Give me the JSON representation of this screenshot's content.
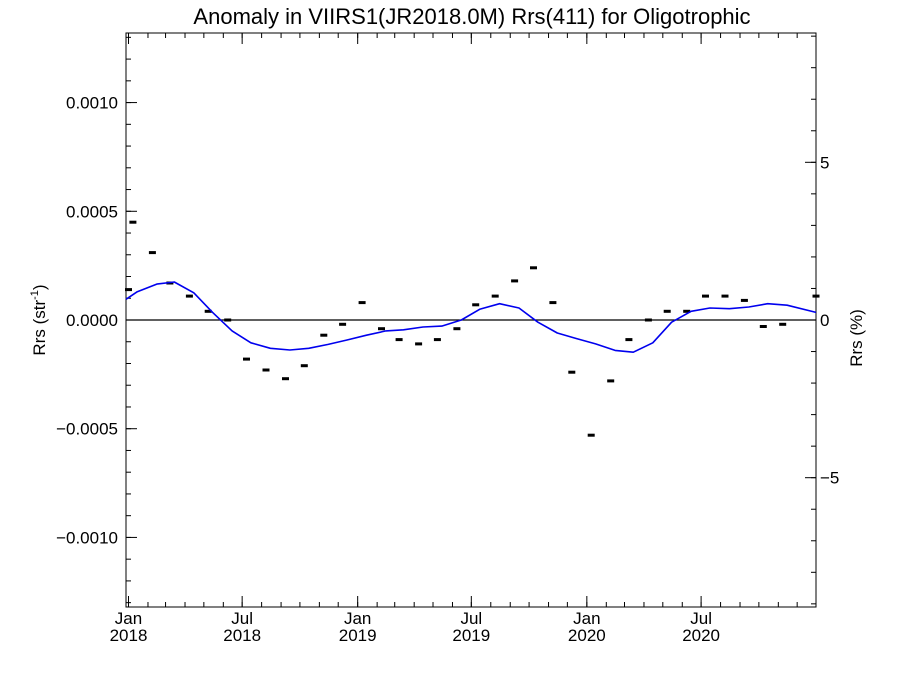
{
  "chart_data": {
    "type": "line",
    "title": "Anomaly in VIIRS1(JR2018.0M) Rrs(411) for Oligotrophic",
    "ylabel": "Rrs (str",
    "ylabel_sup": "-1",
    "ylabel_close": ")",
    "y2label": "Rrs (%)",
    "ylim": [
      -0.00132,
      0.00132
    ],
    "y2lim": [
      -9.1,
      9.1
    ],
    "xlim": [
      "2017-12-28",
      "2020-12-31"
    ],
    "y_ticks": [
      {
        "value": 0.001,
        "label": "0.0010"
      },
      {
        "value": 0.0005,
        "label": "0.0005"
      },
      {
        "value": 0.0,
        "label": "0.0000"
      },
      {
        "value": -0.0005,
        "label": "−0.0005"
      },
      {
        "value": -0.001,
        "label": "−0.0010"
      }
    ],
    "y2_ticks": [
      {
        "value": 5,
        "label": "5"
      },
      {
        "value": 0,
        "label": "0"
      },
      {
        "value": -5,
        "label": "−5"
      }
    ],
    "x_ticks": [
      {
        "date": "2018-01-01",
        "month": "Jan",
        "year": "2018"
      },
      {
        "date": "2018-07-01",
        "month": "Jul",
        "year": "2018"
      },
      {
        "date": "2019-01-01",
        "month": "Jan",
        "year": "2019"
      },
      {
        "date": "2019-07-01",
        "month": "Jul",
        "year": "2019"
      },
      {
        "date": "2020-01-01",
        "month": "Jan",
        "year": "2020"
      },
      {
        "date": "2020-07-01",
        "month": "Jul",
        "year": "2020"
      }
    ],
    "zero_line": true,
    "grid": false,
    "series": [
      {
        "kind": "markers",
        "color": "#000000",
        "points": [
          {
            "x": "2018-01-01",
            "y": 0.00014
          },
          {
            "x": "2018-01-08",
            "y": 0.00045
          },
          {
            "x": "2018-02-08",
            "y": 0.00031
          },
          {
            "x": "2018-03-08",
            "y": 0.00017
          },
          {
            "x": "2018-04-08",
            "y": 0.00011
          },
          {
            "x": "2018-05-08",
            "y": 4e-05
          },
          {
            "x": "2018-06-08",
            "y": 0.0
          },
          {
            "x": "2018-07-08",
            "y": -0.00018
          },
          {
            "x": "2018-08-08",
            "y": -0.00023
          },
          {
            "x": "2018-09-08",
            "y": -0.00027
          },
          {
            "x": "2018-10-08",
            "y": -0.00021
          },
          {
            "x": "2018-11-08",
            "y": -7e-05
          },
          {
            "x": "2018-12-08",
            "y": -2e-05
          },
          {
            "x": "2019-01-08",
            "y": 8e-05
          },
          {
            "x": "2019-02-08",
            "y": -4e-05
          },
          {
            "x": "2019-03-08",
            "y": -9e-05
          },
          {
            "x": "2019-04-08",
            "y": -0.00011
          },
          {
            "x": "2019-05-08",
            "y": -9e-05
          },
          {
            "x": "2019-06-08",
            "y": -4e-05
          },
          {
            "x": "2019-07-08",
            "y": 7e-05
          },
          {
            "x": "2019-08-08",
            "y": 0.00011
          },
          {
            "x": "2019-09-08",
            "y": 0.00018
          },
          {
            "x": "2019-10-08",
            "y": 0.00024
          },
          {
            "x": "2019-11-08",
            "y": 8e-05
          },
          {
            "x": "2019-12-08",
            "y": -0.00024
          },
          {
            "x": "2020-01-08",
            "y": -0.00053
          },
          {
            "x": "2020-02-08",
            "y": -0.00028
          },
          {
            "x": "2020-03-08",
            "y": -9e-05
          },
          {
            "x": "2020-04-08",
            "y": 0.0
          },
          {
            "x": "2020-05-08",
            "y": 4e-05
          },
          {
            "x": "2020-06-08",
            "y": 4e-05
          },
          {
            "x": "2020-07-08",
            "y": 0.00011
          },
          {
            "x": "2020-08-08",
            "y": 0.00011
          },
          {
            "x": "2020-09-08",
            "y": 9e-05
          },
          {
            "x": "2020-10-08",
            "y": -3e-05
          },
          {
            "x": "2020-11-08",
            "y": -2e-05
          },
          {
            "x": "2020-12-31",
            "y": 0.00011
          }
        ]
      },
      {
        "kind": "line",
        "color": "#0000ee",
        "points": [
          {
            "x": "2017-12-28",
            "y": 9.5e-05
          },
          {
            "x": "2018-01-15",
            "y": 0.00013
          },
          {
            "x": "2018-02-15",
            "y": 0.000165
          },
          {
            "x": "2018-03-15",
            "y": 0.000175
          },
          {
            "x": "2018-04-15",
            "y": 0.000125
          },
          {
            "x": "2018-05-15",
            "y": 3.5e-05
          },
          {
            "x": "2018-06-15",
            "y": -5e-05
          },
          {
            "x": "2018-07-15",
            "y": -0.000105
          },
          {
            "x": "2018-08-15",
            "y": -0.00013
          },
          {
            "x": "2018-09-15",
            "y": -0.000138
          },
          {
            "x": "2018-10-15",
            "y": -0.00013
          },
          {
            "x": "2018-11-15",
            "y": -0.000112
          },
          {
            "x": "2018-12-15",
            "y": -9.2e-05
          },
          {
            "x": "2019-01-15",
            "y": -7e-05
          },
          {
            "x": "2019-02-15",
            "y": -5e-05
          },
          {
            "x": "2019-03-15",
            "y": -4.5e-05
          },
          {
            "x": "2019-04-15",
            "y": -3.2e-05
          },
          {
            "x": "2019-05-15",
            "y": -2.8e-05
          },
          {
            "x": "2019-06-15",
            "y": 0.0
          },
          {
            "x": "2019-07-15",
            "y": 5e-05
          },
          {
            "x": "2019-08-15",
            "y": 7.5e-05
          },
          {
            "x": "2019-09-15",
            "y": 5.5e-05
          },
          {
            "x": "2019-10-15",
            "y": -1e-05
          },
          {
            "x": "2019-11-15",
            "y": -6e-05
          },
          {
            "x": "2019-12-15",
            "y": -8.5e-05
          },
          {
            "x": "2020-01-15",
            "y": -0.00011
          },
          {
            "x": "2020-02-15",
            "y": -0.00014
          },
          {
            "x": "2020-03-15",
            "y": -0.000148
          },
          {
            "x": "2020-04-15",
            "y": -0.000105
          },
          {
            "x": "2020-05-15",
            "y": -1e-05
          },
          {
            "x": "2020-06-15",
            "y": 4e-05
          },
          {
            "x": "2020-07-15",
            "y": 5.5e-05
          },
          {
            "x": "2020-08-15",
            "y": 5.2e-05
          },
          {
            "x": "2020-09-15",
            "y": 6e-05
          },
          {
            "x": "2020-10-15",
            "y": 7.5e-05
          },
          {
            "x": "2020-11-15",
            "y": 6.8e-05
          },
          {
            "x": "2020-12-31",
            "y": 3.5e-05
          }
        ]
      }
    ]
  }
}
